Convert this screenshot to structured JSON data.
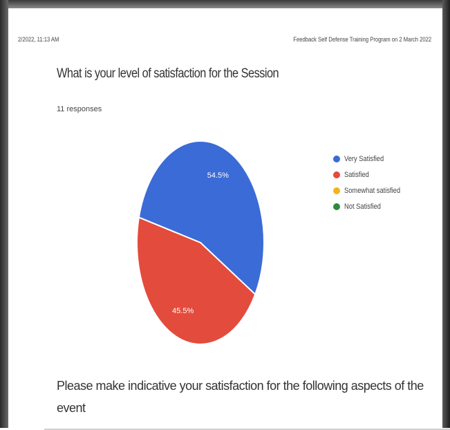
{
  "page": {
    "header_left": "2/2022, 11:13 AM",
    "header_right": "Feedback Self Defense Training Program on 2 March 2022"
  },
  "question1": {
    "title": "What is your level of satisfaction for the Session",
    "responses": "11 responses"
  },
  "question2": {
    "title": "Please make indicative your satisfaction for the following aspects of the event"
  },
  "chart_data": {
    "type": "pie",
    "title": "What is your level of satisfaction for the Session",
    "categories": [
      "Very Satisfied",
      "Satisfied",
      "Somewhat satisfied",
      "Not Satisfied"
    ],
    "values": [
      54.5,
      45.5,
      0,
      0
    ],
    "slice_labels": [
      "54.5%",
      "45.5%",
      "",
      ""
    ],
    "colors": [
      "#3b6bd6",
      "#e34b3c",
      "#f2b41c",
      "#2f8a3e"
    ],
    "legend_position": "right"
  }
}
